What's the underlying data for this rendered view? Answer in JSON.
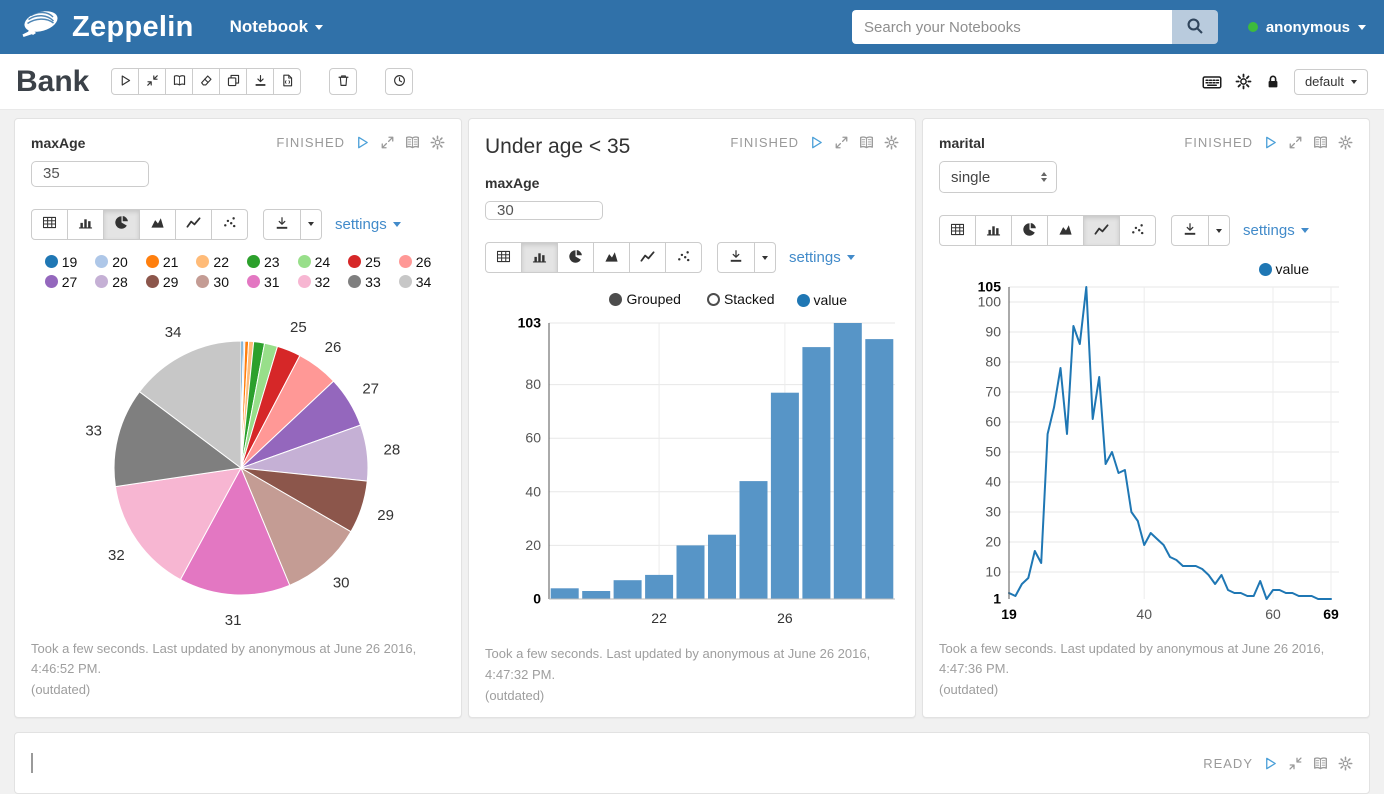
{
  "navbar": {
    "brand": "Zeppelin",
    "menu_label": "Notebook",
    "search_placeholder": "Search your Notebooks",
    "user_name": "anonymous",
    "user_status_color": "#3dbb3d",
    "bg_color": "#3071a9"
  },
  "note": {
    "title": "Bank",
    "interpreter_label": "default",
    "toolbar_icons": [
      "run-all-icon",
      "toggle-code-icon",
      "toggle-output-icon",
      "clear-output-icon",
      "clone-note-icon",
      "export-note-icon",
      "commit-icon"
    ],
    "delete_icon": "trash-icon",
    "scheduler_icon": "clock-icon",
    "right_icons": [
      "keyboard-icon",
      "gear-icon",
      "lock-icon"
    ]
  },
  "paragraphs": [
    {
      "status": "FINISHED",
      "header_icons": [
        "play-icon",
        "expand-icon",
        "output-icon",
        "gear-icon"
      ],
      "form": {
        "label": "maxAge",
        "type": "text",
        "value": "35"
      },
      "chart_types": [
        "table",
        "bar",
        "pie",
        "area",
        "line",
        "scatter"
      ],
      "selected_chart": "pie",
      "settings_label": "settings",
      "footer_line1": "Took a few seconds. Last updated by anonymous at June 26 2016, 4:46:52 PM.",
      "footer_line2": "(outdated)"
    },
    {
      "heading": "Under age < 35",
      "status": "FINISHED",
      "header_icons": [
        "play-icon",
        "expand-icon",
        "output-icon",
        "gear-icon"
      ],
      "form": {
        "label": "maxAge",
        "type": "text",
        "value": "30"
      },
      "chart_types": [
        "table",
        "bar",
        "pie",
        "area",
        "line",
        "scatter"
      ],
      "selected_chart": "bar",
      "settings_label": "settings",
      "footer_line1": "Took a few seconds. Last updated by anonymous at June 26 2016, 4:47:32 PM.",
      "footer_line2": "(outdated)"
    },
    {
      "status": "FINISHED",
      "header_icons": [
        "play-icon",
        "expand-icon",
        "output-icon",
        "gear-icon"
      ],
      "form": {
        "label": "marital",
        "type": "select",
        "value": "single"
      },
      "chart_types": [
        "table",
        "bar",
        "pie",
        "area",
        "line",
        "scatter"
      ],
      "selected_chart": "line",
      "settings_label": "settings",
      "footer_line1": "Took a few seconds. Last updated by anonymous at June 26 2016, 4:47:36 PM.",
      "footer_line2": "(outdated)"
    }
  ],
  "bottom_paragraph": {
    "status": "READY",
    "header_icons": [
      "play-icon",
      "shrink-icon",
      "output-icon",
      "gear-icon"
    ]
  },
  "chart_data": [
    {
      "type": "pie",
      "title": "maxAge age distribution",
      "legend_position": "top",
      "categories": [
        "19",
        "20",
        "21",
        "22",
        "23",
        "24",
        "25",
        "26",
        "27",
        "28",
        "29",
        "30",
        "31",
        "32",
        "33",
        "34"
      ],
      "values": [
        4,
        3,
        7,
        9,
        20,
        24,
        44,
        77,
        94,
        103,
        97,
        150,
        205,
        213,
        182,
        213
      ],
      "colors": [
        "#1f77b4",
        "#aec7e8",
        "#ff7f0e",
        "#ffbb78",
        "#2ca02c",
        "#98df8a",
        "#d62728",
        "#ff9896",
        "#9467bd",
        "#c5b0d5",
        "#8c564b",
        "#c49c94",
        "#e377c2",
        "#f7b6d2",
        "#7f7f7f",
        "#c7c7c7"
      ],
      "label_threshold_pct": 2
    },
    {
      "type": "bar",
      "title": "Under age < 35 counts by age",
      "categories": [
        "19",
        "20",
        "21",
        "22",
        "23",
        "24",
        "25",
        "26",
        "27",
        "28",
        "29"
      ],
      "series": [
        {
          "name": "value",
          "values": [
            4,
            3,
            7,
            9,
            20,
            24,
            44,
            77,
            94,
            103,
            97
          ]
        }
      ],
      "shown_xticks": [
        "22",
        "26"
      ],
      "yticks": [
        0,
        20,
        40,
        60,
        80,
        103
      ],
      "ylim": [
        0,
        103
      ],
      "bar_color": "#5795c7",
      "legend_color": "#1f77b4",
      "controls": [
        "Grouped",
        "Stacked"
      ],
      "selected_control": "Grouped",
      "grid": true,
      "legend": [
        "value"
      ]
    },
    {
      "type": "line",
      "title": "marital=single counts by age",
      "x": [
        19,
        20,
        21,
        22,
        23,
        24,
        25,
        26,
        27,
        28,
        29,
        30,
        31,
        32,
        33,
        34,
        35,
        36,
        37,
        38,
        39,
        40,
        41,
        42,
        43,
        44,
        45,
        46,
        47,
        48,
        49,
        50,
        51,
        52,
        53,
        54,
        55,
        56,
        57,
        58,
        59,
        60,
        61,
        62,
        63,
        64,
        65,
        66,
        67,
        68,
        69
      ],
      "series": [
        {
          "name": "value",
          "values": [
            3,
            2,
            6,
            8,
            17,
            13,
            56,
            65,
            78,
            56,
            92,
            86,
            105,
            61,
            75,
            46,
            50,
            43,
            44,
            30,
            27,
            19,
            23,
            21,
            19,
            15,
            14,
            12,
            12,
            12,
            11,
            9,
            6,
            9,
            4,
            3,
            3,
            2,
            2,
            7,
            1,
            4,
            4,
            3,
            3,
            2,
            2,
            2,
            1,
            1,
            1
          ]
        }
      ],
      "yticks": [
        1,
        10,
        20,
        30,
        40,
        50,
        60,
        70,
        80,
        90,
        100,
        105
      ],
      "xticks": [
        19,
        40,
        60,
        69
      ],
      "ylim": [
        1,
        105
      ],
      "xlim": [
        19,
        69
      ],
      "line_color": "#1f77b4",
      "grid": true,
      "legend": [
        "value"
      ]
    }
  ]
}
